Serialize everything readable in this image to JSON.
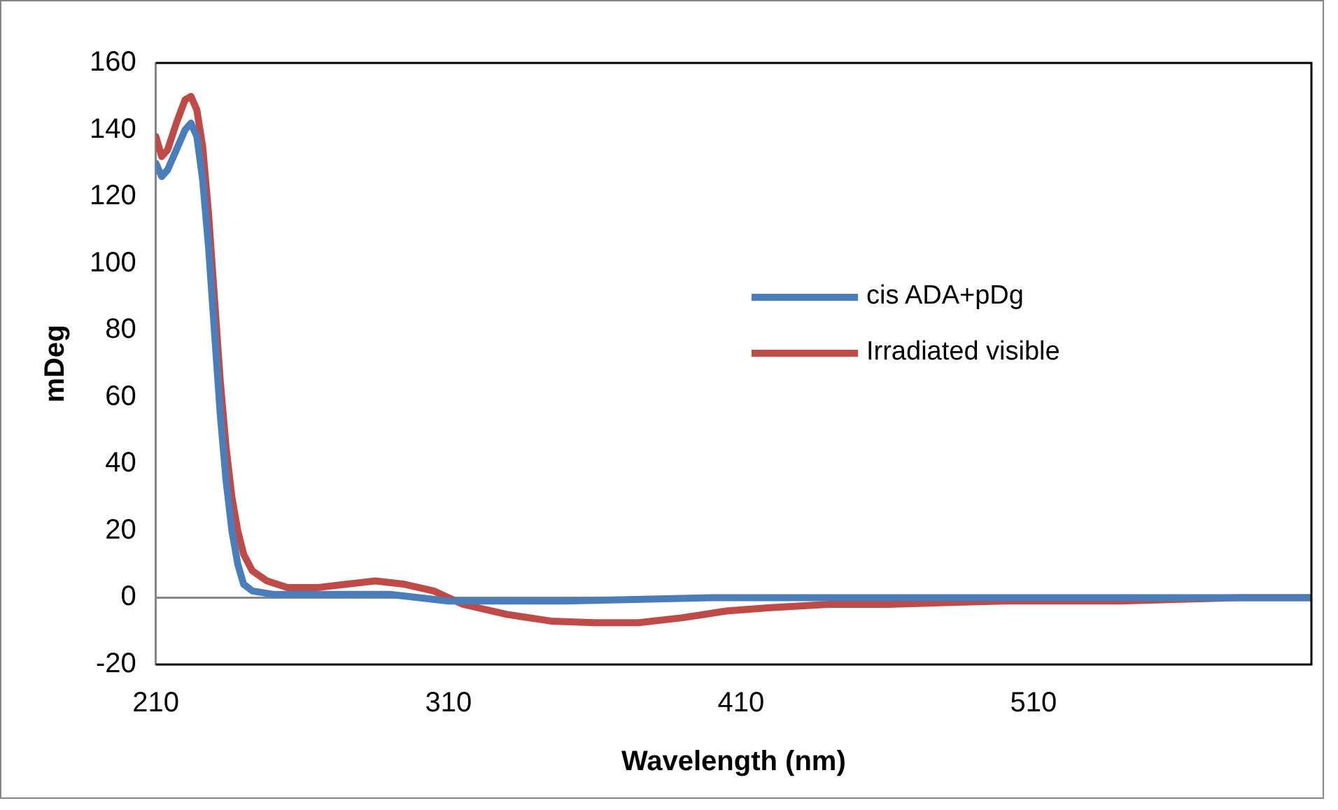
{
  "chart_data": {
    "type": "line",
    "xlabel": "Wavelength (nm)",
    "ylabel": "mDeg",
    "xlim": [
      210,
      605
    ],
    "xticks": [
      210,
      310,
      410,
      510
    ],
    "ylim": [
      -20,
      160
    ],
    "yticks": [
      -20,
      0,
      20,
      40,
      60,
      80,
      100,
      120,
      140,
      160
    ],
    "grid": false,
    "legend": "right",
    "marker": "none",
    "line_style": "solid",
    "ref_lines": [
      {
        "axis": "y",
        "value": 0,
        "color": "#868686"
      }
    ],
    "series": [
      {
        "name": "cis ADA+pDg",
        "color": "#4a7ebb",
        "x": [
          210,
          212,
          214,
          217,
          220,
          222,
          224,
          226,
          228,
          230,
          232,
          234,
          236,
          238,
          240,
          243,
          250,
          260,
          280,
          290,
          300,
          310,
          330,
          350,
          400,
          450,
          500,
          550,
          600,
          605
        ],
        "values": [
          130,
          126,
          128,
          134,
          140,
          142,
          138,
          125,
          105,
          80,
          55,
          35,
          20,
          10,
          4,
          2,
          1,
          1,
          1,
          1,
          0,
          -1,
          -1,
          -1,
          0,
          0,
          0,
          0,
          0,
          0
        ]
      },
      {
        "name": "Irradiated visible",
        "color": "#be4b48",
        "x": [
          210,
          212,
          214,
          217,
          220,
          222,
          224,
          226,
          228,
          230,
          232,
          234,
          236,
          238,
          240,
          243,
          248,
          255,
          265,
          275,
          285,
          295,
          305,
          315,
          330,
          345,
          360,
          375,
          390,
          405,
          420,
          440,
          460,
          480,
          500,
          520,
          540,
          560,
          580,
          600,
          605
        ],
        "values": [
          138,
          132,
          134,
          142,
          149,
          150,
          146,
          135,
          115,
          90,
          65,
          45,
          30,
          20,
          13,
          8,
          5,
          3,
          3,
          4,
          5,
          4,
          2,
          -2,
          -5,
          -7,
          -7.5,
          -7.5,
          -6,
          -4,
          -3,
          -2,
          -2,
          -1.5,
          -1,
          -1,
          -1,
          -0.5,
          0,
          0,
          0
        ]
      }
    ]
  }
}
